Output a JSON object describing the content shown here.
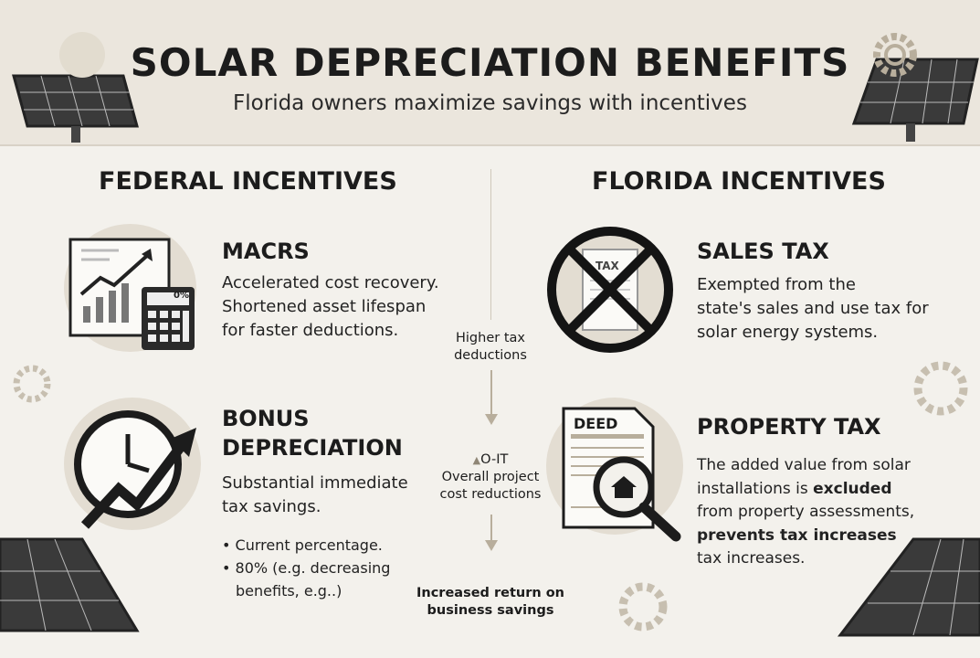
{
  "header": {
    "title": "SOLAR DEPRECIATION BENEFITS",
    "subtitle": "Florida owners maximize savings with incentives"
  },
  "federal": {
    "heading": "FEDERAL INCENTIVES",
    "macrs": {
      "title": "MACRS",
      "lines": [
        "Accelerated cost recovery.",
        "Shortened asset lifespan",
        "for faster deductions."
      ],
      "calculator_display": "0%"
    },
    "bonus": {
      "title_lines": [
        "BONUS",
        "DEPRECIATION"
      ],
      "lines": [
        "Substantial immediate",
        "tax savings."
      ],
      "bullets": [
        "Current percentage.",
        "80% (e.g. decreasing",
        "benefits, e.g..)"
      ]
    }
  },
  "flow": {
    "step1": [
      "Higher tax",
      "deductions"
    ],
    "step2_label": "O-IT",
    "step2": [
      "Overall project",
      "cost reductions"
    ],
    "step3": [
      "Increased return on",
      "business savings"
    ]
  },
  "florida": {
    "heading": "FLORIDA INCENTIVES",
    "sales": {
      "title": "SALES TAX",
      "lines": [
        "Exempted from the",
        "state's sales and use tax for",
        "solar energy systems."
      ],
      "receipt_label": "TAX"
    },
    "property": {
      "title": "PROPERTY TAX",
      "line1": "The added value from solar",
      "line2_pre": "installations is ",
      "line2_bold": "excluded",
      "line3": "from property assessments,",
      "line4_bold": "prevents tax increases",
      "line5": "tax increases.",
      "deed_label": "DEED"
    }
  },
  "colors": {
    "header_bg": "#ebe6dd",
    "page_bg": "#f3f1ec",
    "accent": "#b8ae9c",
    "ink": "#1c1c1c"
  }
}
